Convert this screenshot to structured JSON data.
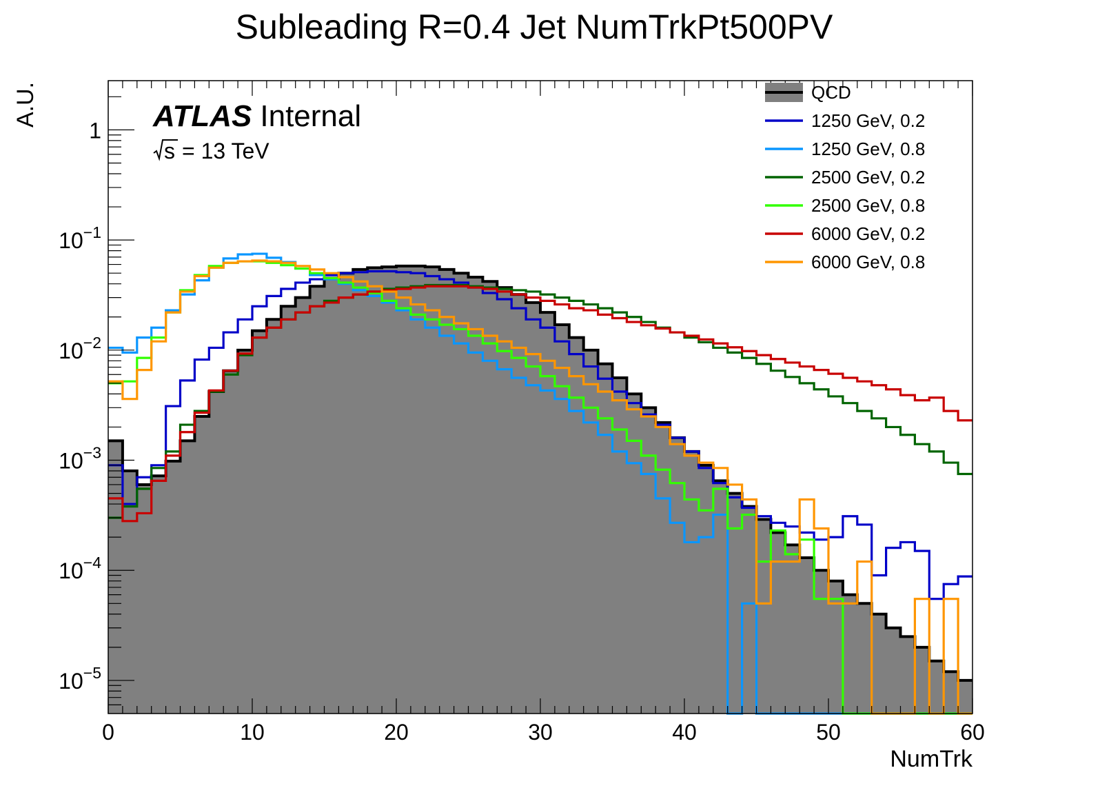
{
  "chart_data": {
    "type": "histogram",
    "title": "Subleading R=0.4 Jet NumTrkPt500PV",
    "xlabel": "NumTrk",
    "ylabel": "A.U.",
    "xlim": [
      0,
      60
    ],
    "ylim": [
      5e-06,
      2.8
    ],
    "log_y": true,
    "bin_width": 1,
    "x_ticks": [
      0,
      10,
      20,
      30,
      40,
      50,
      60
    ],
    "y_ticks": [
      {
        "value": 1,
        "base": "1",
        "exp": ""
      },
      {
        "value": 0.1,
        "base": "10",
        "exp": "−1"
      },
      {
        "value": 0.01,
        "base": "10",
        "exp": "−2"
      },
      {
        "value": 0.001,
        "base": "10",
        "exp": "−3"
      },
      {
        "value": 0.0001,
        "base": "10",
        "exp": "−4"
      },
      {
        "value": 1e-05,
        "base": "10",
        "exp": "−5"
      }
    ],
    "label_atlas": "ATLAS",
    "label_status": "Internal",
    "label_sqrt": "s",
    "label_energy": "= 13 TeV",
    "legend_position": "top-right",
    "series": [
      {
        "name": "QCD",
        "color": "#000000",
        "fill": "#808080",
        "style": "filled",
        "values": [
          0.0015,
          0.0008,
          0.0006,
          0.00072,
          0.00098,
          0.0015,
          0.0025,
          0.0042,
          0.0065,
          0.01,
          0.015,
          0.019,
          0.025,
          0.03,
          0.038,
          0.045,
          0.05,
          0.054,
          0.056,
          0.057,
          0.058,
          0.058,
          0.057,
          0.054,
          0.05,
          0.046,
          0.042,
          0.037,
          0.032,
          0.027,
          0.022,
          0.017,
          0.013,
          0.01,
          0.0075,
          0.0056,
          0.004,
          0.003,
          0.0022,
          0.0016,
          0.0012,
          0.0009,
          0.00065,
          0.0005,
          0.00038,
          0.00029,
          0.00022,
          0.00017,
          0.00013,
          0.0001,
          8e-05,
          6e-05,
          5e-05,
          4e-05,
          3e-05,
          2.5e-05,
          2e-05,
          1.5e-05,
          1.2e-05,
          1e-05
        ]
      },
      {
        "name": "1250 GeV, 0.2",
        "color": "#0000c8",
        "style": "line",
        "values": [
          0.0009,
          0.0004,
          0.0007,
          0.0009,
          0.0031,
          0.0053,
          0.0082,
          0.0105,
          0.0145,
          0.019,
          0.025,
          0.031,
          0.036,
          0.041,
          0.044,
          0.048,
          0.05,
          0.051,
          0.052,
          0.052,
          0.051,
          0.05,
          0.047,
          0.044,
          0.041,
          0.037,
          0.033,
          0.029,
          0.024,
          0.019,
          0.016,
          0.012,
          0.0092,
          0.0071,
          0.0055,
          0.0042,
          0.0033,
          0.0026,
          0.0021,
          0.0016,
          0.0012,
          0.00085,
          0.00062,
          0.00046,
          0.00037,
          0.00031,
          0.00027,
          0.00025,
          0.00022,
          0.00019,
          0.0002,
          0.00031,
          0.00026,
          9e-05,
          0.00016,
          0.00018,
          0.00015,
          5.5e-05,
          7.5e-05,
          8.8e-05
        ]
      },
      {
        "name": "1250 GeV, 0.8",
        "color": "#0a96ff",
        "style": "line",
        "values": [
          0.0105,
          0.0095,
          0.013,
          0.016,
          0.023,
          0.032,
          0.043,
          0.056,
          0.068,
          0.074,
          0.075,
          0.069,
          0.063,
          0.055,
          0.048,
          0.044,
          0.04,
          0.035,
          0.031,
          0.027,
          0.023,
          0.019,
          0.016,
          0.0135,
          0.0115,
          0.0095,
          0.008,
          0.0067,
          0.0056,
          0.0048,
          0.0043,
          0.0036,
          0.0028,
          0.0022,
          0.0017,
          0.0012,
          0.00094,
          0.00075,
          0.00045,
          0.00027,
          0.00018,
          0.0002,
          0.00032,
          3e-06,
          5e-05,
          3e-06,
          3e-06,
          3e-06,
          3e-06,
          3e-06,
          3e-06,
          3e-06,
          3e-06,
          3e-06,
          3e-06,
          3e-06,
          3e-06,
          3e-06,
          3e-06,
          3e-06
        ]
      },
      {
        "name": "2500 GeV, 0.2",
        "color": "#006400",
        "style": "line",
        "values": [
          0.0003,
          0.00038,
          0.00055,
          0.00085,
          0.0012,
          0.0021,
          0.0028,
          0.0042,
          0.006,
          0.009,
          0.013,
          0.016,
          0.019,
          0.022,
          0.025,
          0.028,
          0.03,
          0.032,
          0.034,
          0.036,
          0.037,
          0.038,
          0.039,
          0.039,
          0.039,
          0.038,
          0.037,
          0.036,
          0.035,
          0.034,
          0.032,
          0.03,
          0.028,
          0.026,
          0.024,
          0.022,
          0.02,
          0.018,
          0.016,
          0.0145,
          0.013,
          0.0118,
          0.0105,
          0.0095,
          0.0085,
          0.0075,
          0.0065,
          0.0057,
          0.005,
          0.0044,
          0.0038,
          0.0033,
          0.0028,
          0.0024,
          0.002,
          0.0017,
          0.0014,
          0.0012,
          0.00095,
          0.00075
        ]
      },
      {
        "name": "2500 GeV, 0.8",
        "color": "#32ff00",
        "style": "line",
        "values": [
          0.005,
          0.0052,
          0.0085,
          0.013,
          0.022,
          0.035,
          0.048,
          0.058,
          0.062,
          0.064,
          0.064,
          0.062,
          0.059,
          0.055,
          0.05,
          0.045,
          0.041,
          0.037,
          0.033,
          0.028,
          0.024,
          0.021,
          0.019,
          0.017,
          0.0155,
          0.0135,
          0.0115,
          0.0098,
          0.0085,
          0.0071,
          0.0058,
          0.0047,
          0.0037,
          0.003,
          0.0024,
          0.0019,
          0.0015,
          0.0011,
          0.00082,
          0.00062,
          0.00044,
          0.00035,
          0.00055,
          0.00024,
          0.00032,
          0.00012,
          0.00023,
          0.00014,
          0.00019,
          5.5e-05,
          5.5e-05,
          3e-06,
          3e-06,
          3e-06,
          3e-06,
          3e-06,
          3e-06,
          3e-06,
          3e-06,
          3e-06
        ]
      },
      {
        "name": "6000 GeV, 0.2",
        "color": "#c80000",
        "style": "line",
        "values": [
          0.00045,
          0.00028,
          0.00033,
          0.00065,
          0.0011,
          0.0018,
          0.0027,
          0.0043,
          0.0065,
          0.0093,
          0.013,
          0.016,
          0.019,
          0.022,
          0.025,
          0.027,
          0.03,
          0.032,
          0.034,
          0.035,
          0.036,
          0.037,
          0.038,
          0.038,
          0.038,
          0.037,
          0.036,
          0.034,
          0.032,
          0.03,
          0.028,
          0.026,
          0.024,
          0.023,
          0.021,
          0.0195,
          0.018,
          0.0168,
          0.0157,
          0.0145,
          0.0135,
          0.0125,
          0.0115,
          0.0106,
          0.0098,
          0.009,
          0.0083,
          0.0077,
          0.0071,
          0.0066,
          0.0061,
          0.0056,
          0.0052,
          0.0048,
          0.0044,
          0.0039,
          0.0035,
          0.0037,
          0.0028,
          0.0023
        ]
      },
      {
        "name": "6000 GeV, 0.8",
        "color": "#ff9600",
        "style": "line",
        "values": [
          0.0052,
          0.0036,
          0.0066,
          0.012,
          0.022,
          0.034,
          0.047,
          0.056,
          0.062,
          0.064,
          0.065,
          0.064,
          0.062,
          0.058,
          0.054,
          0.05,
          0.046,
          0.042,
          0.038,
          0.034,
          0.03,
          0.026,
          0.023,
          0.02,
          0.0175,
          0.0155,
          0.0135,
          0.012,
          0.0105,
          0.0092,
          0.008,
          0.0069,
          0.0058,
          0.0049,
          0.0042,
          0.0035,
          0.0029,
          0.0025,
          0.002,
          0.0014,
          0.0011,
          0.00095,
          0.00085,
          0.0006,
          0.00044,
          5e-05,
          0.00012,
          0.00012,
          0.00044,
          0.00024,
          5e-05,
          5e-05,
          0.00012,
          3e-06,
          3e-06,
          3e-06,
          5.5e-05,
          3e-06,
          5.5e-05,
          3e-06
        ]
      }
    ]
  }
}
